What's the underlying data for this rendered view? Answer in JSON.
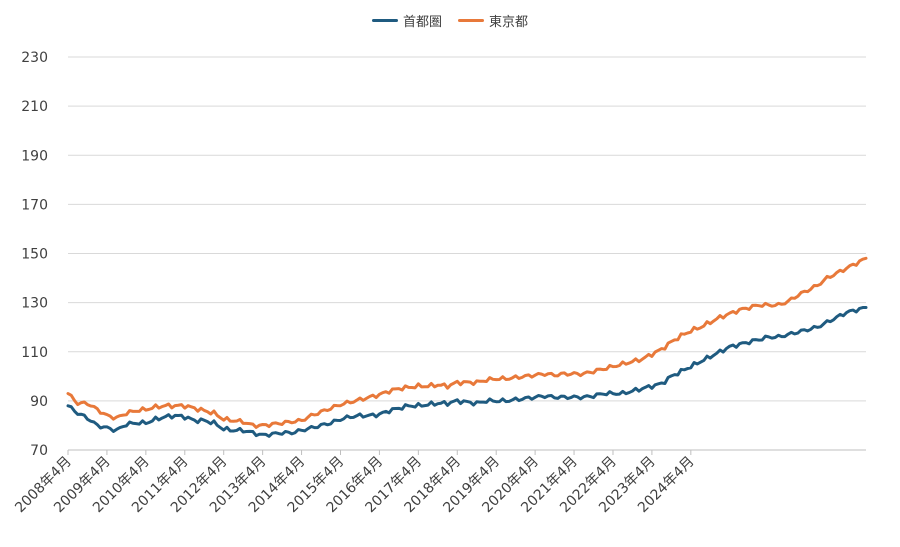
{
  "chart_data": {
    "type": "line",
    "title": "",
    "xlabel": "",
    "ylabel": "",
    "ylim": [
      70,
      230
    ],
    "yticks": [
      70,
      90,
      110,
      130,
      150,
      170,
      190,
      210,
      230
    ],
    "grid": true,
    "legend": "top-center",
    "x_tick_labels": [
      "2008年4月",
      "2009年4月",
      "2010年4月",
      "2011年4月",
      "2012年4月",
      "2013年4月",
      "2014年4月",
      "2015年4月",
      "2016年4月",
      "2017年4月",
      "2018年4月",
      "2019年4月",
      "2020年4月",
      "2021年4月",
      "2022年4月",
      "2023年4月",
      "2024年4月"
    ],
    "series": [
      {
        "name": "首都圏",
        "color": "#1f5b80",
        "anchors": [
          [
            0,
            88
          ],
          [
            3,
            85
          ],
          [
            6,
            83
          ],
          [
            9,
            80
          ],
          [
            12,
            79
          ],
          [
            15,
            78
          ],
          [
            18,
            80.5
          ],
          [
            21,
            81
          ],
          [
            24,
            81
          ],
          [
            27,
            82.5
          ],
          [
            30,
            83.5
          ],
          [
            33,
            84
          ],
          [
            36,
            83.5
          ],
          [
            39,
            82
          ],
          [
            42,
            82
          ],
          [
            45,
            81
          ],
          [
            48,
            78.5
          ],
          [
            51,
            78
          ],
          [
            54,
            78
          ],
          [
            57,
            77
          ],
          [
            60,
            76
          ],
          [
            63,
            76.5
          ],
          [
            66,
            77
          ],
          [
            69,
            77
          ],
          [
            72,
            78
          ],
          [
            75,
            79
          ],
          [
            78,
            80
          ],
          [
            81,
            81
          ],
          [
            84,
            82.5
          ],
          [
            87,
            83.5
          ],
          [
            90,
            84
          ],
          [
            93,
            84
          ],
          [
            96,
            84.5
          ],
          [
            99,
            86
          ],
          [
            102,
            87
          ],
          [
            105,
            88
          ],
          [
            108,
            88
          ],
          [
            111,
            88.5
          ],
          [
            114,
            89
          ],
          [
            117,
            89
          ],
          [
            120,
            90
          ],
          [
            123,
            89.5
          ],
          [
            126,
            89
          ],
          [
            129,
            90
          ],
          [
            132,
            90
          ],
          [
            135,
            90
          ],
          [
            138,
            90.5
          ],
          [
            141,
            91
          ],
          [
            144,
            91.5
          ],
          [
            147,
            92
          ],
          [
            150,
            91.5
          ],
          [
            153,
            91.5
          ],
          [
            156,
            91.5
          ],
          [
            159,
            91.5
          ],
          [
            162,
            92
          ],
          [
            165,
            93
          ],
          [
            168,
            93
          ],
          [
            171,
            93
          ],
          [
            174,
            94
          ],
          [
            177,
            95
          ],
          [
            180,
            96
          ],
          [
            183,
            97
          ],
          [
            186,
            100
          ],
          [
            189,
            102
          ],
          [
            192,
            104
          ],
          [
            195,
            106
          ],
          [
            198,
            108
          ],
          [
            201,
            110
          ],
          [
            204,
            112
          ],
          [
            207,
            113
          ],
          [
            210,
            114
          ],
          [
            213,
            115
          ],
          [
            216,
            116
          ],
          [
            219,
            116
          ],
          [
            222,
            117
          ],
          [
            225,
            118
          ],
          [
            228,
            119
          ],
          [
            231,
            120
          ],
          [
            234,
            122
          ],
          [
            237,
            124
          ],
          [
            240,
            126
          ],
          [
            243,
            127
          ],
          [
            246,
            128
          ]
        ]
      },
      {
        "name": "東京都",
        "color": "#e8793a",
        "anchors": [
          [
            0,
            93
          ],
          [
            3,
            89
          ],
          [
            6,
            89
          ],
          [
            9,
            86.5
          ],
          [
            12,
            84
          ],
          [
            15,
            83
          ],
          [
            18,
            85
          ],
          [
            21,
            86
          ],
          [
            24,
            86.5
          ],
          [
            27,
            87.5
          ],
          [
            30,
            88
          ],
          [
            33,
            88
          ],
          [
            36,
            88
          ],
          [
            39,
            87
          ],
          [
            42,
            86
          ],
          [
            45,
            85
          ],
          [
            48,
            82.5
          ],
          [
            51,
            82
          ],
          [
            54,
            81.5
          ],
          [
            57,
            80
          ],
          [
            60,
            80
          ],
          [
            63,
            80.5
          ],
          [
            66,
            81
          ],
          [
            69,
            81.5
          ],
          [
            72,
            82
          ],
          [
            75,
            84
          ],
          [
            78,
            85.5
          ],
          [
            81,
            87
          ],
          [
            84,
            88.5
          ],
          [
            87,
            89.5
          ],
          [
            90,
            90.5
          ],
          [
            93,
            91.5
          ],
          [
            96,
            92.5
          ],
          [
            99,
            94
          ],
          [
            102,
            95
          ],
          [
            105,
            95.5
          ],
          [
            108,
            96
          ],
          [
            111,
            96
          ],
          [
            114,
            96.5
          ],
          [
            117,
            96
          ],
          [
            120,
            97.5
          ],
          [
            123,
            97.5
          ],
          [
            126,
            97.5
          ],
          [
            129,
            98.5
          ],
          [
            132,
            99
          ],
          [
            135,
            99
          ],
          [
            138,
            99.5
          ],
          [
            141,
            100
          ],
          [
            144,
            100.5
          ],
          [
            147,
            101
          ],
          [
            150,
            100.5
          ],
          [
            153,
            101
          ],
          [
            156,
            101
          ],
          [
            159,
            101
          ],
          [
            162,
            102
          ],
          [
            165,
            103
          ],
          [
            168,
            104
          ],
          [
            171,
            105
          ],
          [
            174,
            106
          ],
          [
            177,
            107
          ],
          [
            180,
            109
          ],
          [
            183,
            111
          ],
          [
            186,
            114
          ],
          [
            189,
            116.5
          ],
          [
            192,
            118.5
          ],
          [
            195,
            120
          ],
          [
            198,
            122
          ],
          [
            201,
            124
          ],
          [
            204,
            125.5
          ],
          [
            207,
            127
          ],
          [
            210,
            128
          ],
          [
            213,
            129
          ],
          [
            216,
            129
          ],
          [
            219,
            129
          ],
          [
            222,
            130.5
          ],
          [
            225,
            133
          ],
          [
            228,
            135
          ],
          [
            231,
            137
          ],
          [
            234,
            140
          ],
          [
            237,
            142
          ],
          [
            240,
            144
          ],
          [
            243,
            146
          ],
          [
            246,
            148
          ]
        ]
      }
    ],
    "months": 247,
    "start_label": "2008年4月"
  }
}
